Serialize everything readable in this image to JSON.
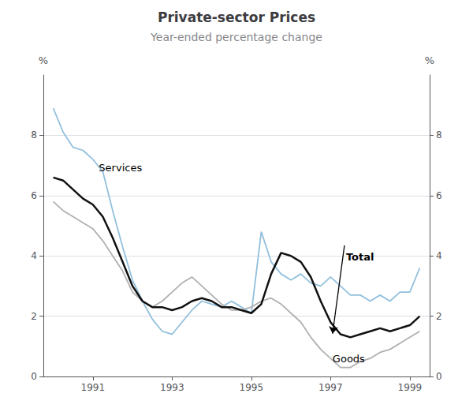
{
  "chart_data": {
    "type": "line",
    "title": "Private-sector Prices",
    "subtitle": "Year-ended percentage change",
    "ylabel": "%",
    "y2label": "%",
    "xlim": [
      1989.75,
      1999.5
    ],
    "xticks": [
      1991,
      1993,
      1995,
      1997,
      1999
    ],
    "ylim": [
      0,
      10
    ],
    "yticks": [
      0,
      2,
      4,
      6,
      8
    ],
    "y2lim": [
      0,
      10
    ],
    "y2ticks": [
      0,
      2,
      4,
      6,
      8
    ],
    "grid": true,
    "x": [
      1990.0,
      1990.25,
      1990.5,
      1990.75,
      1991.0,
      1991.25,
      1991.5,
      1991.75,
      1992.0,
      1992.25,
      1992.5,
      1992.75,
      1993.0,
      1993.25,
      1993.5,
      1993.75,
      1994.0,
      1994.25,
      1994.5,
      1994.75,
      1995.0,
      1995.25,
      1995.5,
      1995.75,
      1996.0,
      1996.25,
      1996.5,
      1996.75,
      1997.0,
      1997.25,
      1997.5,
      1997.75,
      1998.0,
      1998.25,
      1998.5,
      1998.75,
      1999.0,
      1999.25
    ],
    "series": [
      {
        "name": "Services",
        "color": "#92c0dc",
        "values": [
          8.9,
          8.1,
          7.6,
          7.5,
          7.2,
          6.8,
          5.5,
          4.3,
          3.2,
          2.5,
          1.9,
          1.5,
          1.4,
          1.8,
          2.2,
          2.5,
          2.4,
          2.3,
          2.5,
          2.3,
          2.1,
          4.8,
          3.8,
          3.4,
          3.2,
          3.4,
          3.1,
          3.0,
          3.3,
          3.0,
          2.7,
          2.7,
          2.5,
          2.7,
          2.5,
          2.8,
          2.8,
          3.6
        ]
      },
      {
        "name": "Goods",
        "color": "#b0b0b0",
        "values": [
          5.8,
          5.5,
          5.3,
          5.1,
          4.9,
          4.5,
          4.0,
          3.5,
          2.8,
          2.5,
          2.3,
          2.5,
          2.8,
          3.1,
          3.3,
          3.0,
          2.7,
          2.4,
          2.2,
          2.2,
          2.3,
          2.5,
          2.6,
          2.4,
          2.1,
          1.8,
          1.3,
          0.9,
          0.6,
          0.3,
          0.3,
          0.5,
          0.6,
          0.8,
          0.9,
          1.1,
          1.3,
          1.5
        ]
      },
      {
        "name": "Total",
        "color": "#111111",
        "values": [
          6.6,
          6.5,
          6.2,
          5.9,
          5.7,
          5.3,
          4.6,
          3.8,
          3.0,
          2.5,
          2.3,
          2.3,
          2.2,
          2.3,
          2.5,
          2.6,
          2.5,
          2.3,
          2.3,
          2.2,
          2.1,
          2.4,
          3.4,
          4.1,
          4.0,
          3.8,
          3.3,
          2.5,
          1.8,
          1.4,
          1.3,
          1.4,
          1.5,
          1.6,
          1.5,
          1.6,
          1.7,
          2.0
        ]
      }
    ],
    "annotations": [
      {
        "text": "Services",
        "x": 1991.15,
        "y": 6.55
      },
      {
        "text": "Goods",
        "x": 1997.05,
        "y": 0.22
      },
      {
        "text": "Total",
        "x": 1997.35,
        "y": 4.35,
        "arrow_x": 1997.05,
        "arrow_y": 1.42
      }
    ]
  }
}
